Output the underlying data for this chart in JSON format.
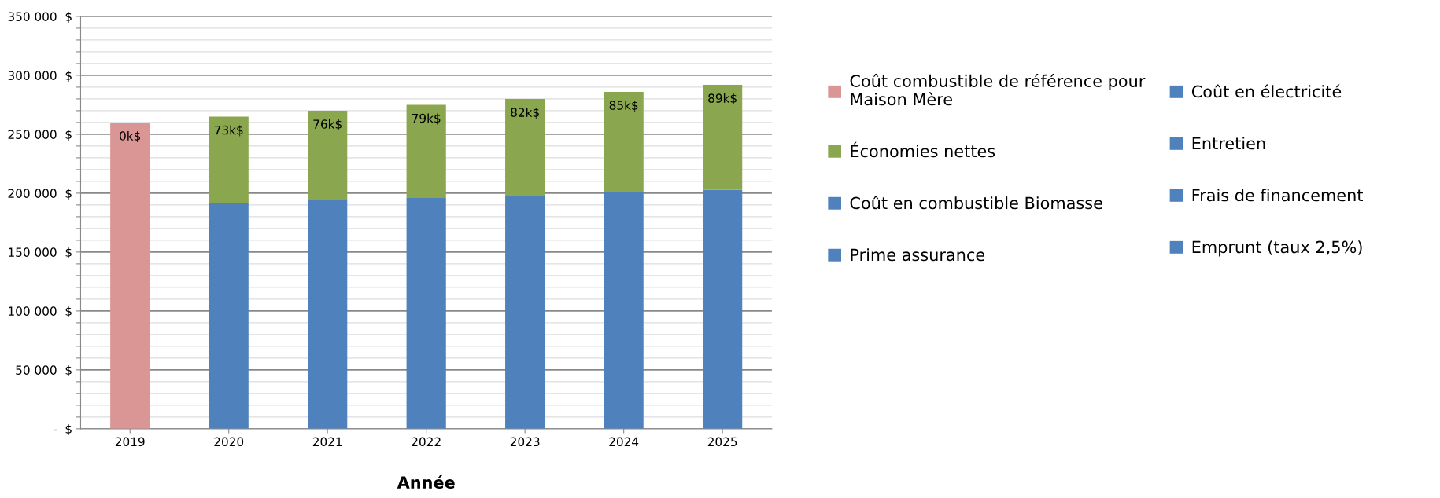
{
  "chart_data": {
    "type": "bar",
    "stacked": true,
    "xlabel": "Année",
    "categories": [
      "2019",
      "2020",
      "2021",
      "2022",
      "2023",
      "2024",
      "2025"
    ],
    "series": [
      {
        "name": "Coût combustible de référence pour\nMaison Mère",
        "color": "#d99694",
        "values": [
          260000,
          null,
          null,
          null,
          null,
          null,
          null
        ]
      },
      {
        "name": "Coût en électricité",
        "color": "#4f81bd",
        "values": [
          null,
          192000,
          194000,
          196000,
          198000,
          201000,
          203000
        ]
      },
      {
        "name": "Économies nettes",
        "color": "#8aa64e",
        "values": [
          0,
          73000,
          76000,
          79000,
          82000,
          85000,
          89000
        ],
        "value_labels": [
          "0k$",
          "73k$",
          "76k$",
          "79k$",
          "82k$",
          "85k$",
          "89k$"
        ]
      },
      {
        "name": "Entretien",
        "color": "#4f81bd",
        "values": [
          null,
          null,
          null,
          null,
          null,
          null,
          null
        ]
      },
      {
        "name": "Coût en combustible Biomasse",
        "color": "#4f81bd",
        "values": [
          null,
          null,
          null,
          null,
          null,
          null,
          null
        ]
      },
      {
        "name": "Frais de financement",
        "color": "#4f81bd",
        "values": [
          null,
          null,
          null,
          null,
          null,
          null,
          null
        ]
      },
      {
        "name": "Prime assurance",
        "color": "#4f81bd",
        "values": [
          null,
          null,
          null,
          null,
          null,
          null,
          null
        ]
      },
      {
        "name": "Emprunt (taux 2,5%)",
        "color": "#4f81bd",
        "values": [
          null,
          null,
          null,
          null,
          null,
          null,
          null
        ]
      }
    ],
    "ylim": [
      0,
      350000
    ],
    "yticks": [
      {
        "value": 0,
        "label": "-  $"
      },
      {
        "value": 10000,
        "label": null
      },
      {
        "value": 20000,
        "label": null
      },
      {
        "value": 30000,
        "label": null
      },
      {
        "value": 40000,
        "label": null
      },
      {
        "value": 50000,
        "label": "50 000  $"
      },
      {
        "value": 60000,
        "label": null
      },
      {
        "value": 70000,
        "label": null
      },
      {
        "value": 80000,
        "label": null
      },
      {
        "value": 90000,
        "label": null
      },
      {
        "value": 100000,
        "label": "100 000  $"
      },
      {
        "value": 110000,
        "label": null
      },
      {
        "value": 120000,
        "label": null
      },
      {
        "value": 130000,
        "label": null
      },
      {
        "value": 140000,
        "label": null
      },
      {
        "value": 150000,
        "label": "150 000  $"
      },
      {
        "value": 160000,
        "label": null
      },
      {
        "value": 170000,
        "label": null
      },
      {
        "value": 180000,
        "label": null
      },
      {
        "value": 190000,
        "label": null
      },
      {
        "value": 200000,
        "label": "200 000  $"
      },
      {
        "value": 210000,
        "label": null
      },
      {
        "value": 220000,
        "label": null
      },
      {
        "value": 230000,
        "label": null
      },
      {
        "value": 240000,
        "label": null
      },
      {
        "value": 250000,
        "label": "250 000  $"
      },
      {
        "value": 260000,
        "label": null
      },
      {
        "value": 270000,
        "label": null
      },
      {
        "value": 280000,
        "label": null
      },
      {
        "value": 290000,
        "label": null
      },
      {
        "value": 300000,
        "label": "300 000  $"
      },
      {
        "value": 310000,
        "label": null
      },
      {
        "value": 320000,
        "label": null
      },
      {
        "value": 330000,
        "label": null
      },
      {
        "value": 340000,
        "label": null
      },
      {
        "value": 350000,
        "label": "350 000  $"
      }
    ],
    "grid": "y",
    "legend": "right"
  }
}
